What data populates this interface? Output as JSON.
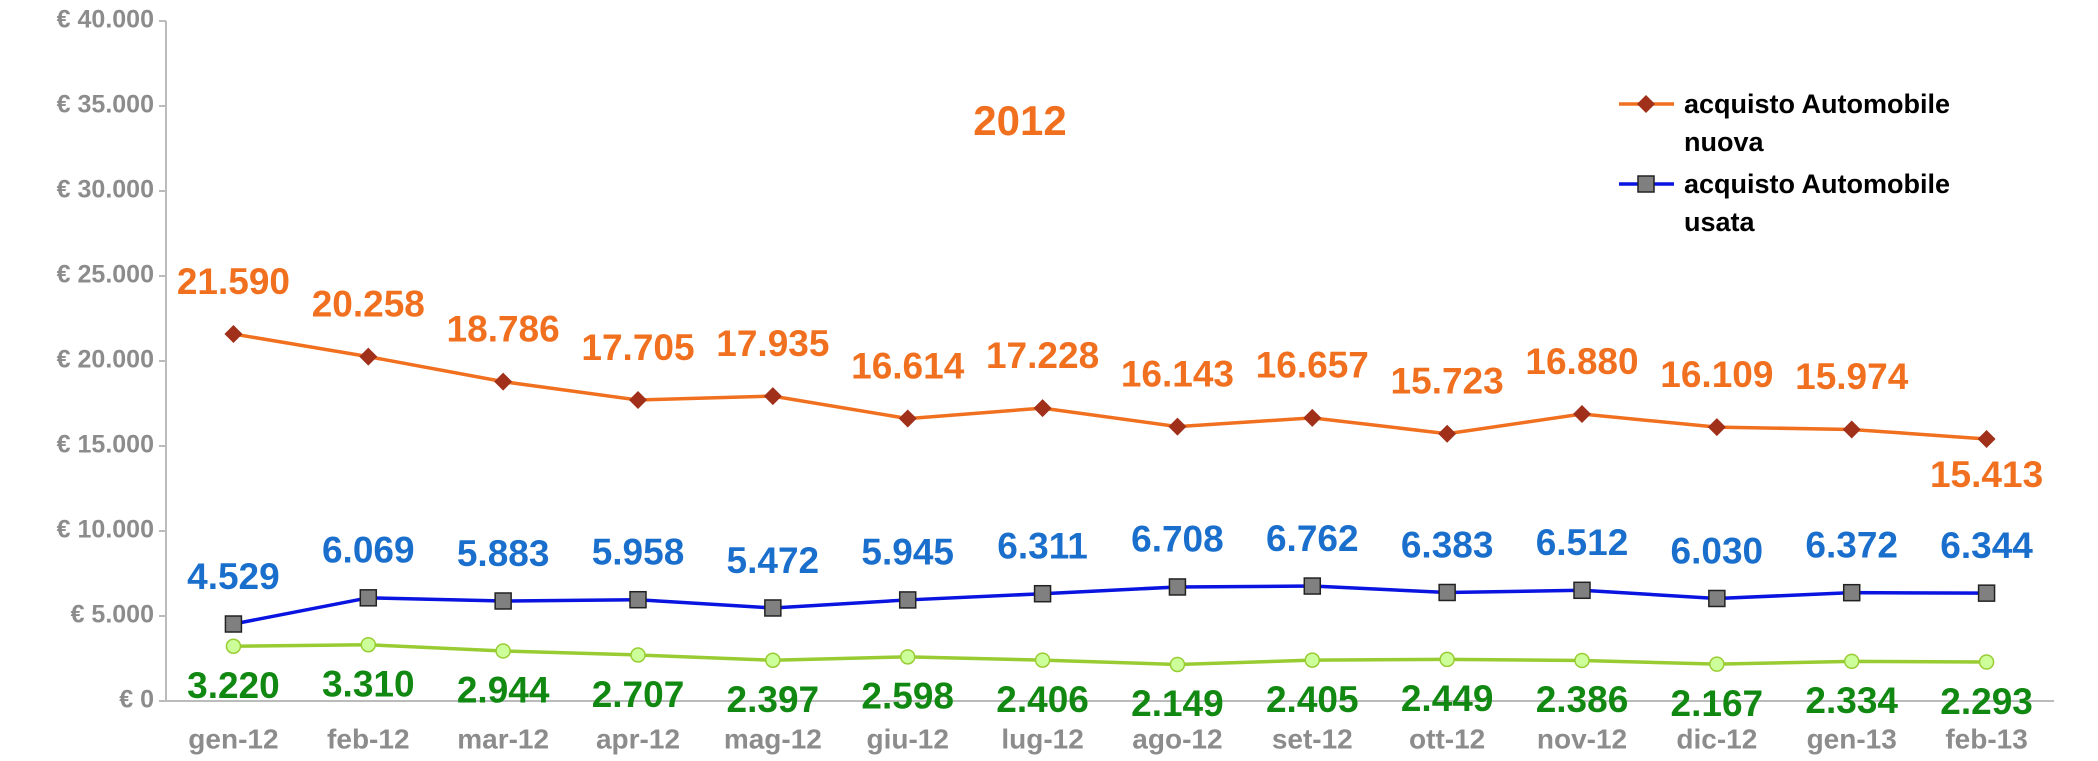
{
  "chart_data": {
    "type": "line",
    "title": "2012",
    "categories": [
      "gen-12",
      "feb-12",
      "mar-12",
      "apr-12",
      "mag-12",
      "giu-12",
      "lug-12",
      "ago-12",
      "set-12",
      "ott-12",
      "nov-12",
      "dic-12",
      "gen-13",
      "feb-13"
    ],
    "series": [
      {
        "name": "acquisto Automobile nuova",
        "color": "#f07020",
        "marker_color": "#a0301a",
        "label_color": "#f07020",
        "marker": "diamond",
        "values": [
          21590,
          20258,
          18786,
          17705,
          17935,
          16614,
          17228,
          16143,
          16657,
          15723,
          16880,
          16109,
          15974,
          15413
        ],
        "value_labels": [
          "21.590",
          "20.258",
          "18.786",
          "17.705",
          "17.935",
          "16.614",
          "17.228",
          "16.143",
          "16.657",
          "15.723",
          "16.880",
          "16.109",
          "15.974",
          "15.413"
        ]
      },
      {
        "name": "acquisto Automobile usata",
        "color": "#0a14e0",
        "marker_color": "#808080",
        "label_color": "#1a6fcc",
        "marker": "square",
        "values": [
          4529,
          6069,
          5883,
          5958,
          5472,
          5945,
          6311,
          6708,
          6762,
          6383,
          6512,
          6030,
          6372,
          6344
        ],
        "value_labels": [
          "4.529",
          "6.069",
          "5.883",
          "5.958",
          "5.472",
          "5.945",
          "6.311",
          "6.708",
          "6.762",
          "6.383",
          "6.512",
          "6.030",
          "6.372",
          "6.344"
        ]
      },
      {
        "color": "#99cc33",
        "marker_color": "#ccff99",
        "label_color": "#118811",
        "marker": "circle",
        "values": [
          3220,
          3310,
          2944,
          2707,
          2397,
          2598,
          2406,
          2149,
          2405,
          2449,
          2386,
          2167,
          2334,
          2293
        ],
        "value_labels": [
          "3.220",
          "3.310",
          "2.944",
          "2.707",
          "2.397",
          "2.598",
          "2.406",
          "2.149",
          "2.405",
          "2.449",
          "2.386",
          "2.167",
          "2.334",
          "2.293"
        ]
      }
    ],
    "ylim": [
      0,
      40000
    ],
    "yticks": [
      {
        "value": 0,
        "label": "€ 0"
      },
      {
        "value": 5000,
        "label": "€ 5.000"
      },
      {
        "value": 10000,
        "label": "€ 10.000"
      },
      {
        "value": 15000,
        "label": "€ 15.000"
      },
      {
        "value": 20000,
        "label": "€ 20.000"
      },
      {
        "value": 25000,
        "label": "€ 25.000"
      },
      {
        "value": 30000,
        "label": "€ 30.000"
      },
      {
        "value": 35000,
        "label": "€ 35.000"
      },
      {
        "value": 40000,
        "label": "€ 40.000"
      }
    ],
    "legend": "upper right"
  }
}
